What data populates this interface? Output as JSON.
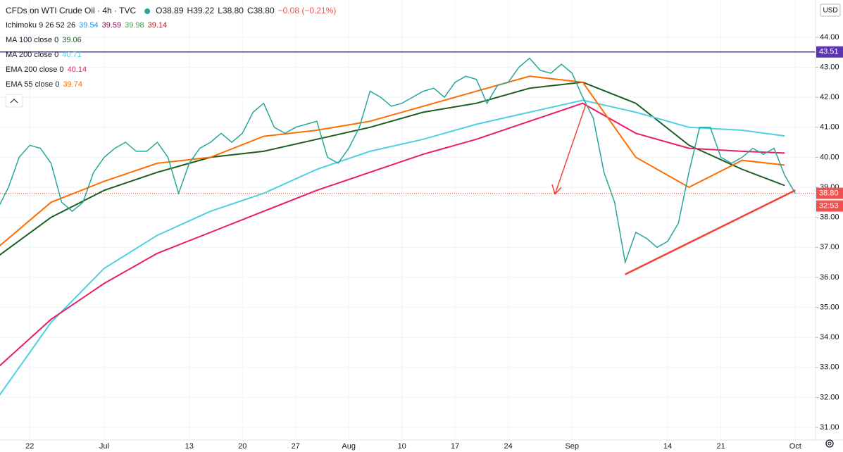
{
  "chart_data": {
    "type": "line",
    "title": "CFDs on WTI Crude Oil · 4h · TVC",
    "quote": [
      "O38.89",
      "H39.22",
      "L38.80",
      "C38.80",
      "−0.08 (−0.21%)"
    ],
    "ichimoku": {
      "label": "Ichimoku 9 26 52 26",
      "values": [
        39.54,
        39.59,
        39.98,
        39.14
      ],
      "colors": [
        "#2196f3",
        "#880e4f",
        "#43a047",
        "#b71c1c"
      ]
    },
    "currency": "USD",
    "price": {
      "color": "#26a69a",
      "values": [
        38.3,
        39.0,
        40.0,
        40.4,
        40.3,
        39.8,
        38.5,
        38.2,
        38.5,
        39.5,
        40.0,
        40.3,
        40.5,
        40.2,
        40.2,
        40.5,
        40.0,
        38.8,
        39.8,
        40.3,
        40.5,
        40.8,
        40.5,
        40.8,
        41.5,
        41.8,
        41.0,
        40.8,
        41.0,
        41.1,
        41.2,
        40.0,
        39.8,
        40.3,
        41.0,
        42.2,
        42.0,
        41.7,
        41.8,
        42.0,
        42.2,
        42.3,
        42.0,
        42.5,
        42.7,
        42.6,
        41.8,
        42.4,
        42.5,
        43.0,
        43.3,
        42.9,
        42.8,
        43.1,
        42.8,
        42.0,
        41.3,
        39.5,
        38.5,
        36.5,
        37.5,
        37.3,
        37.0,
        37.2,
        37.8,
        39.5,
        41.0,
        41.0,
        40.0,
        39.8,
        40.0,
        40.3,
        40.1,
        40.3,
        39.4,
        38.8
      ]
    },
    "series": [
      {
        "name": "MA 100 close 0",
        "value": 39.06,
        "color": "#1b5e20",
        "x": [
          0,
          5,
          10,
          15,
          20,
          25,
          30,
          35,
          40,
          45,
          50,
          55,
          60,
          65,
          70,
          74
        ],
        "values": [
          36.7,
          38.0,
          38.9,
          39.5,
          40.0,
          40.2,
          40.6,
          41.0,
          41.5,
          41.8,
          42.3,
          42.5,
          41.8,
          40.4,
          39.6,
          39.06
        ]
      },
      {
        "name": "MA 200 close 0",
        "value": 40.71,
        "color": "#4dd0e1",
        "x": [
          0,
          5,
          10,
          15,
          20,
          25,
          30,
          35,
          40,
          45,
          50,
          55,
          60,
          65,
          70,
          74
        ],
        "values": [
          32.0,
          34.5,
          36.3,
          37.4,
          38.2,
          38.8,
          39.6,
          40.2,
          40.6,
          41.1,
          41.5,
          41.9,
          41.5,
          41.0,
          40.9,
          40.71
        ]
      },
      {
        "name": "EMA 200 close 0",
        "value": 40.14,
        "color": "#e91e63",
        "x": [
          0,
          5,
          10,
          15,
          20,
          25,
          30,
          35,
          40,
          45,
          50,
          55,
          60,
          65,
          70,
          74
        ],
        "values": [
          33.0,
          34.6,
          35.8,
          36.8,
          37.5,
          38.2,
          38.9,
          39.5,
          40.1,
          40.6,
          41.2,
          41.8,
          40.8,
          40.3,
          40.2,
          40.14
        ]
      },
      {
        "name": "EMA 55 close 0",
        "value": 39.74,
        "color": "#ff6d00",
        "x": [
          0,
          5,
          10,
          15,
          20,
          25,
          30,
          35,
          40,
          45,
          50,
          55,
          60,
          65,
          70,
          74
        ],
        "values": [
          37.0,
          38.5,
          39.2,
          39.8,
          40.0,
          40.7,
          40.9,
          41.2,
          41.7,
          42.2,
          42.7,
          42.5,
          40.0,
          39.0,
          39.9,
          39.74
        ]
      }
    ],
    "level": {
      "value": 43.51,
      "label": "43.51",
      "color": "#5e35b1"
    },
    "last_price": {
      "value": 38.8,
      "label": "38.80",
      "color": "#ef5350"
    },
    "countdown": "32:53",
    "trendline": {
      "color": "#f44336",
      "x": [
        59,
        75
      ],
      "values": [
        36.1,
        38.9
      ]
    },
    "xlim": [
      0.2,
      76.9
    ],
    "xticks": [
      {
        "value": 3,
        "label": "22"
      },
      {
        "value": 10,
        "label": "Jul"
      },
      {
        "value": 18,
        "label": "13"
      },
      {
        "value": 23,
        "label": "20"
      },
      {
        "value": 28,
        "label": "27"
      },
      {
        "value": 33,
        "label": "Aug"
      },
      {
        "value": 38,
        "label": "10"
      },
      {
        "value": 43,
        "label": "17"
      },
      {
        "value": 48,
        "label": "24"
      },
      {
        "value": 54,
        "label": "Sep"
      },
      {
        "value": 63,
        "label": "14"
      },
      {
        "value": 68,
        "label": "21"
      },
      {
        "value": 75,
        "label": "Oct"
      }
    ],
    "ylim": [
      30.58,
      45.24
    ],
    "yticks": [
      {
        "value": 31,
        "label": "31.00"
      },
      {
        "value": 32,
        "label": "32.00"
      },
      {
        "value": 33,
        "label": "33.00"
      },
      {
        "value": 34,
        "label": "34.00"
      },
      {
        "value": 35,
        "label": "35.00"
      },
      {
        "value": 36,
        "label": "36.00"
      },
      {
        "value": 37,
        "label": "37.00"
      },
      {
        "value": 38,
        "label": "38.00"
      },
      {
        "value": 39,
        "label": "39.00"
      },
      {
        "value": 40,
        "label": "40.00"
      },
      {
        "value": 41,
        "label": "41.00"
      },
      {
        "value": 42,
        "label": "42.00"
      },
      {
        "value": 43,
        "label": "43.00"
      },
      {
        "value": 44,
        "label": "44.00"
      }
    ],
    "grid": true
  }
}
